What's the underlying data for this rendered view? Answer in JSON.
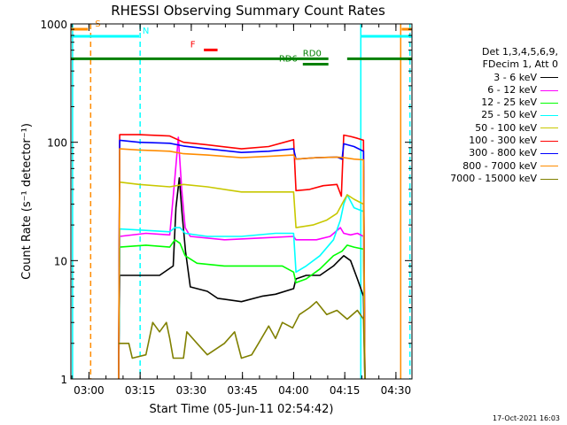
{
  "chart_data": {
    "type": "line",
    "title": "RHESSI Observing Summary Count Rates",
    "xlabel": "Start Time (05-Jun-11 02:54:42)",
    "ylabel": "Count Rate (s⁻¹ detector⁻¹)",
    "x_range_min": [
      0,
      100
    ],
    "ylim": [
      1,
      1000
    ],
    "y_scale": "log",
    "x_ticks": [
      {
        "min": 5.3,
        "label": "03:00"
      },
      {
        "min": 20.3,
        "label": "03:15"
      },
      {
        "min": 35.3,
        "label": "03:30"
      },
      {
        "min": 50.3,
        "label": "03:45"
      },
      {
        "min": 65.3,
        "label": "04:00"
      },
      {
        "min": 80.3,
        "label": "04:15"
      },
      {
        "min": 95.3,
        "label": "04:30"
      }
    ],
    "y_ticks": [
      {
        "value": 1,
        "label": "1"
      },
      {
        "value": 10,
        "label": "10"
      },
      {
        "value": 100,
        "label": "100"
      },
      {
        "value": 1000,
        "label": "1000"
      }
    ],
    "legend_header": [
      "Det 1,3,4,5,6,9,",
      "FDecim 1, Att 0"
    ],
    "legend_position": "right",
    "series": [
      {
        "name": "3 - 6 keV",
        "color": "#000000",
        "points": [
          [
            14,
            1
          ],
          [
            14.3,
            7.5
          ],
          [
            20,
            7.5
          ],
          [
            26,
            7.5
          ],
          [
            30,
            9
          ],
          [
            30.8,
            28
          ],
          [
            31.8,
            50
          ],
          [
            32.6,
            25
          ],
          [
            33.6,
            12
          ],
          [
            35,
            6
          ],
          [
            40,
            5.5
          ],
          [
            43,
            4.8
          ],
          [
            50,
            4.5
          ],
          [
            56,
            5
          ],
          [
            60,
            5.2
          ],
          [
            65.3,
            5.8
          ],
          [
            66,
            7
          ],
          [
            69,
            7.5
          ],
          [
            73,
            7.5
          ],
          [
            77,
            9
          ],
          [
            80,
            11
          ],
          [
            82,
            10
          ],
          [
            84,
            7
          ],
          [
            85.8,
            5
          ],
          [
            86.2,
            1
          ]
        ]
      },
      {
        "name": "6 - 12 keV",
        "color": "#ff00ff",
        "points": [
          [
            14,
            1
          ],
          [
            14.3,
            16
          ],
          [
            22,
            17
          ],
          [
            29,
            16.5
          ],
          [
            30.5,
            50
          ],
          [
            31.5,
            110
          ],
          [
            32.5,
            40
          ],
          [
            33.5,
            19
          ],
          [
            35,
            16
          ],
          [
            45,
            15
          ],
          [
            55,
            15.5
          ],
          [
            65.3,
            16
          ],
          [
            66,
            15
          ],
          [
            72,
            15
          ],
          [
            76,
            16
          ],
          [
            79,
            19
          ],
          [
            80,
            17
          ],
          [
            82,
            16.5
          ],
          [
            84,
            17
          ],
          [
            85.8,
            16
          ],
          [
            86.2,
            1
          ]
        ]
      },
      {
        "name": "12 - 25 keV",
        "color": "#00ff00",
        "points": [
          [
            14,
            1
          ],
          [
            14.3,
            13
          ],
          [
            22,
            13.5
          ],
          [
            29,
            13
          ],
          [
            30.5,
            15
          ],
          [
            32,
            14
          ],
          [
            33.5,
            11
          ],
          [
            37,
            9.5
          ],
          [
            45,
            9
          ],
          [
            55,
            9
          ],
          [
            62,
            9
          ],
          [
            65.3,
            8
          ],
          [
            66,
            6.5
          ],
          [
            69,
            7
          ],
          [
            73,
            8.5
          ],
          [
            77,
            11
          ],
          [
            79.5,
            12
          ],
          [
            81,
            13.5
          ],
          [
            83,
            13
          ],
          [
            85.8,
            12.5
          ],
          [
            86.2,
            1
          ]
        ]
      },
      {
        "name": "25 - 50 keV",
        "color": "#00ffff",
        "points": [
          [
            14,
            1
          ],
          [
            14.3,
            18.5
          ],
          [
            22,
            18
          ],
          [
            29,
            17.5
          ],
          [
            30.5,
            19
          ],
          [
            32,
            19
          ],
          [
            33.5,
            17
          ],
          [
            40,
            16
          ],
          [
            50,
            16
          ],
          [
            60,
            17
          ],
          [
            65.3,
            17
          ],
          [
            66,
            8
          ],
          [
            69,
            9
          ],
          [
            73,
            11
          ],
          [
            77,
            15
          ],
          [
            79,
            22
          ],
          [
            80,
            30
          ],
          [
            81,
            36
          ],
          [
            83,
            28
          ],
          [
            85.8,
            26
          ],
          [
            86.2,
            1
          ]
        ]
      },
      {
        "name": "50 - 100 keV",
        "color": "#c8c800",
        "points": [
          [
            14,
            1
          ],
          [
            14.3,
            46
          ],
          [
            20,
            44
          ],
          [
            29,
            42
          ],
          [
            33,
            44
          ],
          [
            40,
            42
          ],
          [
            50,
            38
          ],
          [
            58,
            38
          ],
          [
            65.3,
            38
          ],
          [
            66,
            19
          ],
          [
            71,
            20
          ],
          [
            75,
            22
          ],
          [
            78,
            25
          ],
          [
            80,
            32
          ],
          [
            81,
            36
          ],
          [
            83,
            33
          ],
          [
            85.8,
            30
          ],
          [
            86.2,
            1
          ]
        ]
      },
      {
        "name": "100 - 300 keV",
        "color": "#ff0000",
        "points": [
          [
            14,
            1
          ],
          [
            14.3,
            116
          ],
          [
            20,
            116
          ],
          [
            29,
            113
          ],
          [
            33,
            100
          ],
          [
            40,
            95
          ],
          [
            50,
            88
          ],
          [
            58,
            92
          ],
          [
            65.3,
            105
          ],
          [
            66,
            39
          ],
          [
            70,
            40
          ],
          [
            74,
            43
          ],
          [
            78,
            44
          ],
          [
            79.3,
            35
          ],
          [
            80,
            115
          ],
          [
            82,
            112
          ],
          [
            84,
            108
          ],
          [
            85.8,
            104
          ],
          [
            86.2,
            1
          ]
        ]
      },
      {
        "name": "300 - 800 keV",
        "color": "#0000ff",
        "points": [
          [
            14,
            1
          ],
          [
            14.3,
            104
          ],
          [
            20,
            100
          ],
          [
            29,
            98
          ],
          [
            33,
            93
          ],
          [
            40,
            88
          ],
          [
            50,
            82
          ],
          [
            58,
            84
          ],
          [
            65.3,
            88
          ],
          [
            66,
            72
          ],
          [
            72,
            74
          ],
          [
            78,
            75
          ],
          [
            79.5,
            72
          ],
          [
            80,
            97
          ],
          [
            83,
            92
          ],
          [
            85.8,
            84
          ],
          [
            86.2,
            1
          ]
        ]
      },
      {
        "name": "800 - 7000 keV",
        "color": "#ff8c00",
        "points": [
          [
            14,
            1
          ],
          [
            14.3,
            88
          ],
          [
            20,
            86
          ],
          [
            29,
            84
          ],
          [
            33,
            80
          ],
          [
            40,
            78
          ],
          [
            50,
            74
          ],
          [
            58,
            76
          ],
          [
            65.3,
            78
          ],
          [
            66,
            72
          ],
          [
            72,
            74
          ],
          [
            78,
            75
          ],
          [
            80,
            74
          ],
          [
            83,
            72
          ],
          [
            85.8,
            71
          ],
          [
            86.2,
            1
          ]
        ]
      },
      {
        "name": "7000 - 15000 keV",
        "color": "#808000",
        "points": [
          [
            14,
            2
          ],
          [
            17,
            2
          ],
          [
            18,
            1.5
          ],
          [
            22,
            1.6
          ],
          [
            24,
            3
          ],
          [
            26,
            2.5
          ],
          [
            28,
            3
          ],
          [
            29,
            2.2
          ],
          [
            30,
            1.5
          ],
          [
            33,
            1.5
          ],
          [
            34,
            2.5
          ],
          [
            37,
            2
          ],
          [
            40,
            1.6
          ],
          [
            45,
            2
          ],
          [
            48,
            2.5
          ],
          [
            50,
            1.5
          ],
          [
            53,
            1.6
          ],
          [
            55,
            2
          ],
          [
            58,
            2.8
          ],
          [
            60,
            2.2
          ],
          [
            62,
            3
          ],
          [
            65,
            2.7
          ],
          [
            67,
            3.5
          ],
          [
            70,
            4
          ],
          [
            72,
            4.5
          ],
          [
            75,
            3.5
          ],
          [
            78,
            3.8
          ],
          [
            81,
            3.2
          ],
          [
            84,
            3.8
          ],
          [
            85.8,
            3.2
          ],
          [
            86.2,
            1
          ]
        ]
      }
    ],
    "vlines": [
      {
        "min": 0.5,
        "color": "#00ffff",
        "dashed": false
      },
      {
        "min": 5.8,
        "color": "#ff8c00",
        "dashed": true
      },
      {
        "min": 20.3,
        "color": "#00ffff",
        "dashed": true
      },
      {
        "min": 85.0,
        "color": "#00ffff",
        "dashed": false
      },
      {
        "min": 96.7,
        "color": "#ff8c00",
        "dashed": false
      },
      {
        "min": 99.4,
        "color": "#00ffff",
        "dashed": true
      }
    ],
    "flag_bars": [
      {
        "label": "S",
        "color": "#ff8c00",
        "log_y": 2.955,
        "segments": [
          [
            0,
            5
          ]
        ]
      },
      {
        "label": "N",
        "color": "#00ffff",
        "log_y": 2.895,
        "segments": [
          [
            0,
            20
          ]
        ],
        "label_min": 21
      },
      {
        "label": "F",
        "color": "#ff0000",
        "log_y": 2.78,
        "segments": [
          [
            39,
            43
          ]
        ],
        "label_min": 35
      },
      {
        "label": "RD0",
        "color": "#008000",
        "log_y": 2.705,
        "segments": [
          [
            0,
            75.5
          ],
          [
            81,
            100
          ]
        ],
        "label_min": 68
      },
      {
        "label": "RD6",
        "color": "#008000",
        "log_y": 2.66,
        "segments": [
          [
            68,
            75.5
          ]
        ],
        "label_min": 61
      },
      {
        "label": "",
        "color": "#ff8c00",
        "log_y": 2.955,
        "segments": [
          [
            97,
            100
          ]
        ]
      },
      {
        "label": "",
        "color": "#00ffff",
        "log_y": 2.895,
        "segments": [
          [
            85,
            100
          ]
        ]
      }
    ]
  },
  "timestamp": "17-Oct-2021 16:03"
}
